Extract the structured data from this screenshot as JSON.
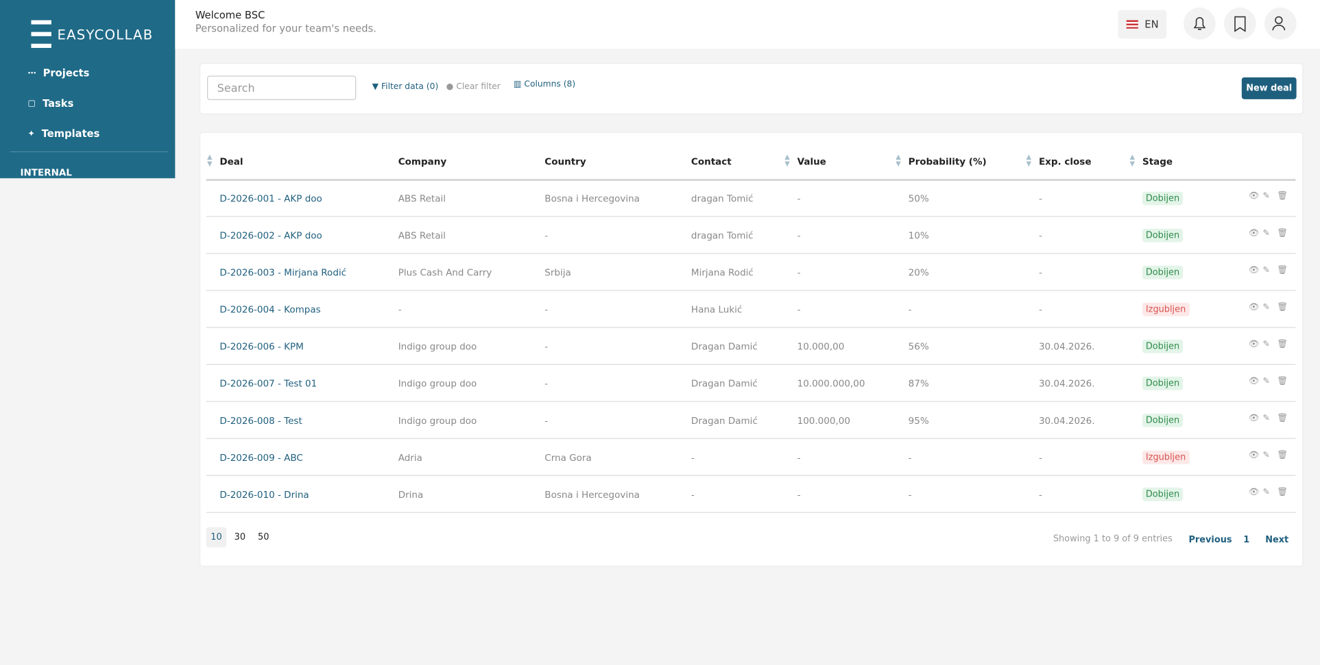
{
  "sidebar": {
    "logo": "EASYCOLLAB",
    "nav": [
      "Projects",
      "Tasks",
      "Templates"
    ],
    "section": "INTERNAL"
  },
  "header": {
    "title": "Welcome BSC",
    "subtitle": "Personalized for your team's needs.",
    "language": "EN"
  },
  "toolbar": {
    "search_placeholder": "Search",
    "filter": "Filter data (0)",
    "clear": "Clear filter",
    "columns": "Columns (8)",
    "new_button": "New deal"
  },
  "table": {
    "columns": [
      "Deal",
      "Company",
      "Country",
      "Contact",
      "Value",
      "Probability (%)",
      "Exp. close",
      "Stage"
    ],
    "rows": [
      [
        "D-2026-001 - AKP doo",
        "ABS Retail",
        "Bosna i Hercegovina",
        "dragan Tomić",
        "-",
        "50%",
        "-",
        "Dobijen"
      ],
      [
        "D-2026-002 - AKP doo",
        "ABS Retail",
        "-",
        "dragan Tomić",
        "-",
        "10%",
        "-",
        "Dobijen"
      ],
      [
        "D-2026-003 - Mirjana Rodić",
        "Plus Cash And Carry",
        "Srbija",
        "Mirjana Rodić",
        "-",
        "20%",
        "-",
        "Dobijen"
      ],
      [
        "D-2026-004 - Kompas",
        "-",
        "-",
        "Hana Lukić",
        "-",
        "-",
        "-",
        "Izgubljen"
      ],
      [
        "D-2026-006 - KPM",
        "Indigo group doo",
        "-",
        "Dragan Damić",
        "10.000,00",
        "56%",
        "30.04.2026.",
        "Dobijen"
      ],
      [
        "D-2026-007 - Test 01",
        "Indigo group doo",
        "-",
        "Dragan Damić",
        "10.000.000,00",
        "87%",
        "30.04.2026.",
        "Dobijen"
      ],
      [
        "D-2026-008 - Test",
        "Indigo group doo",
        "-",
        "Dragan Damić",
        "100.000,00",
        "95%",
        "30.04.2026.",
        "Dobijen"
      ],
      [
        "D-2026-009 - ABC",
        "Adria",
        "Crna Gora",
        "-",
        "-",
        "-",
        "-",
        "Izgubljen"
      ],
      [
        "D-2026-010 - Drina",
        "Drina",
        "Bosna i Hercegovina",
        "-",
        "-",
        "-",
        "-",
        "Dobijen"
      ]
    ]
  },
  "pagination": {
    "page_sizes": [
      "10",
      "30",
      "50"
    ],
    "info": "Showing 1 to 9 of 9 entries",
    "previous": "Previous",
    "page": "1",
    "next": "Next"
  }
}
